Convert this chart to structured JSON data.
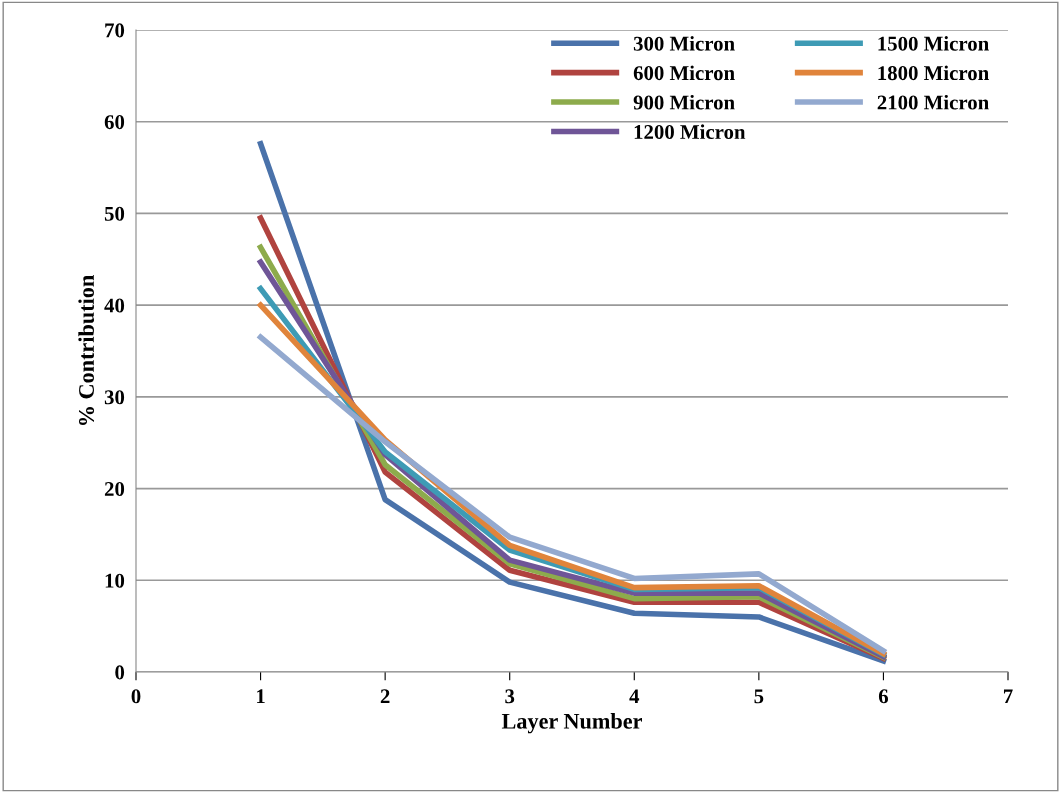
{
  "chart_data": {
    "type": "line",
    "xlabel": "Layer Number",
    "ylabel": "% Contribution",
    "x": [
      1,
      2,
      3,
      4,
      5,
      6
    ],
    "xlim": [
      0,
      7
    ],
    "xticks": [
      0,
      1,
      2,
      3,
      4,
      5,
      6,
      7
    ],
    "ylim": [
      0,
      70
    ],
    "yticks": [
      0,
      10,
      20,
      30,
      40,
      50,
      60,
      70
    ],
    "grid": "y",
    "legend": "top right",
    "marker": "none",
    "line_style": "solid",
    "series": [
      {
        "name": "300 Micron",
        "color": "#4a72aa",
        "values": [
          57.6,
          18.8,
          9.8,
          6.4,
          6.0,
          1.2
        ]
      },
      {
        "name": "600 Micron",
        "color": "#b0433f",
        "values": [
          49.5,
          21.8,
          11.1,
          7.6,
          7.6,
          1.5
        ]
      },
      {
        "name": "900 Micron",
        "color": "#8dab4c",
        "values": [
          46.3,
          22.6,
          11.8,
          8.0,
          8.2,
          1.6
        ]
      },
      {
        "name": "1200 Micron",
        "color": "#6f5597",
        "values": [
          44.7,
          23.7,
          12.2,
          8.6,
          8.6,
          1.7
        ]
      },
      {
        "name": "1500 Micron",
        "color": "#3e9bb5",
        "values": [
          41.8,
          24.0,
          13.3,
          9.0,
          9.2,
          1.9
        ]
      },
      {
        "name": "1800 Micron",
        "color": "#e0843b",
        "values": [
          40.0,
          25.3,
          13.8,
          9.2,
          9.4,
          2.0
        ]
      },
      {
        "name": "2100 Micron",
        "color": "#93a9cf",
        "values": [
          36.5,
          25.1,
          14.7,
          10.2,
          10.7,
          2.3
        ]
      }
    ]
  }
}
